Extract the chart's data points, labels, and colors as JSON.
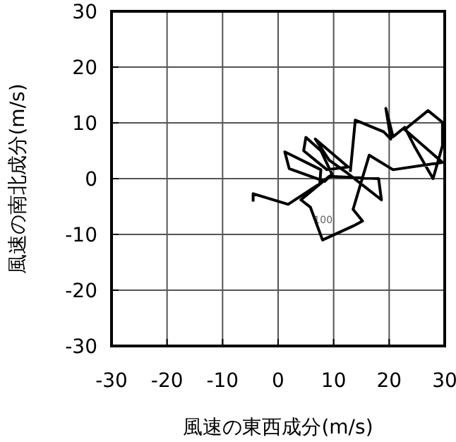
{
  "chart_data": {
    "type": "line",
    "xlabel": "風速の東西成分(m/s)",
    "ylabel": "風速の南北成分(m/s)",
    "xlim": [
      -30,
      30
    ],
    "ylim": [
      -30,
      30
    ],
    "xticks": [
      -30,
      -20,
      -10,
      0,
      10,
      20,
      30
    ],
    "yticks": [
      -30,
      -20,
      -10,
      0,
      10,
      20,
      30
    ],
    "grid": true,
    "marker": "none",
    "line_style": "solid",
    "series": [
      {
        "color": "#000000",
        "x": [
          -4.5,
          -4.5,
          1.8,
          7.5,
          7.7,
          1.2,
          2.0,
          8.4,
          9.7,
          7.7,
          5.0,
          4.6,
          8.8,
          12.6,
          6.7,
          9.2,
          12.2,
          18.6,
          18.1,
          9.2,
          4.1,
          5.8,
          8.0,
          13.5,
          15.2,
          13.5,
          16.4,
          20.7,
          29.6,
          22.8,
          27.0,
          29.6,
          29.6,
          27.9,
          24.5,
          22.8,
          20.7,
          19.4,
          20.3,
          19.0,
          13.9,
          13.0
        ],
        "values": [
          -4.1,
          -2.7,
          -4.6,
          -0.9,
          1.6,
          4.8,
          1.8,
          -0.5,
          0.8,
          5.0,
          7.4,
          5.0,
          1.6,
          2.1,
          7.1,
          3.3,
          1.2,
          -3.8,
          0,
          0.4,
          -3.8,
          -5.1,
          -11.0,
          -8.5,
          -7.6,
          -5.5,
          4.2,
          1.6,
          2.9,
          8.8,
          12.2,
          10.1,
          5.9,
          0,
          5.9,
          9.2,
          7.5,
          12.6,
          7.1,
          8.4,
          10.5,
          1.2
        ]
      }
    ],
    "annotations": [
      "100"
    ]
  }
}
